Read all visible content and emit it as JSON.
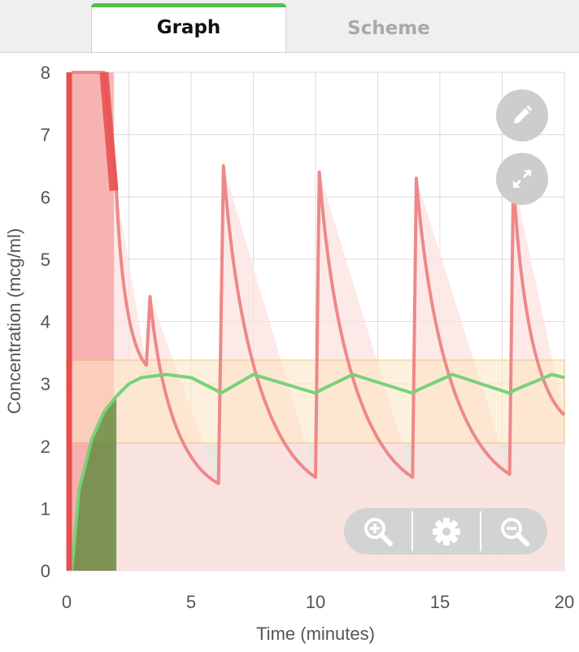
{
  "tabs": [
    {
      "label": "Graph",
      "active": true
    },
    {
      "label": "Scheme",
      "active": false
    }
  ],
  "colors": {
    "accent": "#4cc04c",
    "concentration_line": "#ee8888",
    "concentration_fill": "#fde1e1",
    "effect_line": "#77d277",
    "target_band": "#fde6c2",
    "target_band_border": "#f0b860",
    "lower_zone": "#e5e4d9",
    "infusion": "#e84e4e"
  },
  "icons": {
    "edit": "pencil-icon",
    "expand": "expand-icon",
    "zoom_in": "zoom-in-icon",
    "settings": "gear-icon",
    "zoom_out": "zoom-out-icon"
  },
  "chart_data": {
    "type": "line",
    "xlabel": "Time (minutes)",
    "ylabel": "Concentration (mcg/ml)",
    "xlim": [
      0,
      20
    ],
    "ylim": [
      0,
      8
    ],
    "x_ticks": [
      "0",
      "5",
      "10",
      "15",
      "20"
    ],
    "y_ticks": [
      "0",
      "1",
      "2",
      "3",
      "4",
      "5",
      "6",
      "7",
      "8"
    ],
    "grid": true,
    "target_band": [
      2.05,
      3.38
    ],
    "series": [
      {
        "role": "plasma concentration",
        "x": [
          0.2,
          0.25,
          1.5,
          2.0,
          3.2,
          3.35,
          6.1,
          6.3,
          10.0,
          10.15,
          13.9,
          14.05,
          17.8,
          17.95,
          20.0
        ],
        "y": [
          8,
          8,
          8,
          6.1,
          3.3,
          4.4,
          1.4,
          6.5,
          1.5,
          6.4,
          1.5,
          6.3,
          1.55,
          6.3,
          2.5
        ]
      },
      {
        "role": "effect-site concentration",
        "x": [
          0.2,
          0.5,
          1.0,
          1.5,
          2.0,
          2.5,
          3.0,
          4.0,
          5.0,
          6.0,
          6.2,
          7.5,
          10.0,
          10.2,
          11.5,
          13.9,
          14.1,
          15.5,
          17.8,
          18.0,
          19.5,
          20.0
        ],
        "y": [
          0,
          1.3,
          2.1,
          2.55,
          2.8,
          3.0,
          3.1,
          3.15,
          3.1,
          2.9,
          2.85,
          3.15,
          2.85,
          2.9,
          3.15,
          2.85,
          2.9,
          3.15,
          2.85,
          2.9,
          3.15,
          3.1
        ]
      },
      {
        "role": "infusion",
        "x": [
          0.1,
          1.9
        ],
        "y": [
          8,
          2.8
        ]
      }
    ]
  }
}
